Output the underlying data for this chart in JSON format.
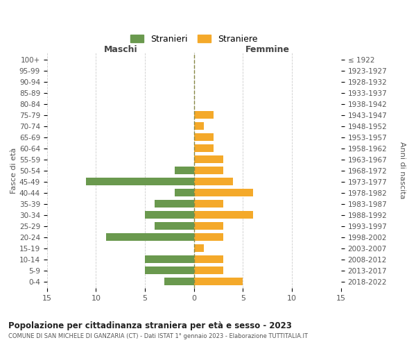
{
  "age_groups": [
    "0-4",
    "5-9",
    "10-14",
    "15-19",
    "20-24",
    "25-29",
    "30-34",
    "35-39",
    "40-44",
    "45-49",
    "50-54",
    "55-59",
    "60-64",
    "65-69",
    "70-74",
    "75-79",
    "80-84",
    "85-89",
    "90-94",
    "95-99",
    "100+"
  ],
  "birth_years": [
    "2018-2022",
    "2013-2017",
    "2008-2012",
    "2003-2007",
    "1998-2002",
    "1993-1997",
    "1988-1992",
    "1983-1987",
    "1978-1982",
    "1973-1977",
    "1968-1972",
    "1963-1967",
    "1958-1962",
    "1953-1957",
    "1948-1952",
    "1943-1947",
    "1938-1942",
    "1933-1937",
    "1928-1932",
    "1923-1927",
    "≤ 1922"
  ],
  "males": [
    3,
    5,
    5,
    0,
    9,
    4,
    5,
    4,
    2,
    11,
    2,
    0,
    0,
    0,
    0,
    0,
    0,
    0,
    0,
    0,
    0
  ],
  "females": [
    5,
    3,
    3,
    1,
    3,
    3,
    6,
    3,
    6,
    4,
    3,
    3,
    2,
    2,
    1,
    2,
    0,
    0,
    0,
    0,
    0
  ],
  "male_color": "#6a994e",
  "female_color": "#f4a92a",
  "dashed_line_color": "#888844",
  "grid_color": "#cccccc",
  "bg_color": "#ffffff",
  "title": "Popolazione per cittadinanza straniera per età e sesso - 2023",
  "subtitle": "COMUNE DI SAN MICHELE DI GANZARIA (CT) - Dati ISTAT 1° gennaio 2023 - Elaborazione TUTTITALIA.IT",
  "legend_male": "Stranieri",
  "legend_female": "Straniere",
  "xlabel_left": "Maschi",
  "xlabel_right": "Femmine",
  "ylabel_left": "Fasce di età",
  "ylabel_right": "Anni di nascita",
  "xlim": 15
}
